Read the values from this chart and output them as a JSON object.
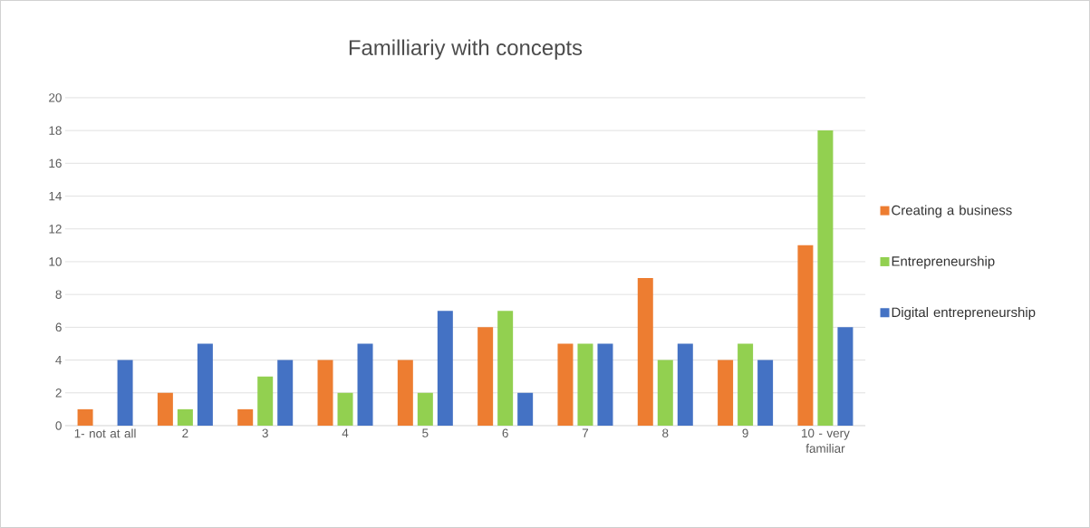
{
  "chart_data": {
    "type": "bar",
    "title": "Familliariy with concepts",
    "categories": [
      "1- not at all",
      "2",
      "3",
      "4",
      "5",
      "6",
      "7",
      "8",
      "9",
      "10 - very familiar"
    ],
    "series": [
      {
        "name": "Creating a business",
        "color": "#ed7d31",
        "values": [
          1,
          2,
          1,
          4,
          4,
          6,
          5,
          9,
          4,
          11
        ]
      },
      {
        "name": "Entrepreneurship",
        "color": "#92d050",
        "values": [
          0,
          1,
          3,
          2,
          2,
          7,
          5,
          4,
          5,
          18
        ]
      },
      {
        "name": "Digital entrepreneurship",
        "color": "#4472c4",
        "values": [
          4,
          5,
          4,
          5,
          7,
          2,
          5,
          5,
          4,
          6
        ]
      }
    ],
    "ylim": [
      0,
      20
    ],
    "yticks": [
      0,
      2,
      4,
      6,
      8,
      10,
      12,
      14,
      16,
      18,
      20
    ],
    "grid": "y",
    "legend": "right"
  }
}
